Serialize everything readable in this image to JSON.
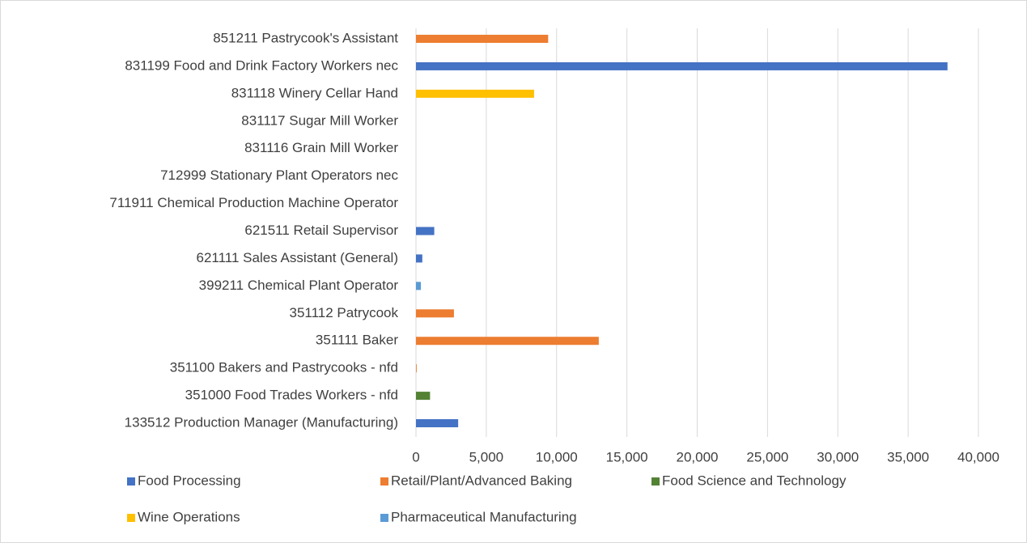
{
  "chart_data": {
    "type": "bar",
    "orientation": "horizontal",
    "stacked": true,
    "categories": [
      "133512  Production Manager (Manufacturing)",
      "351000  Food Trades Workers - nfd",
      "351100 Bakers and Pastrycooks - nfd",
      "351111 Baker",
      "351112 Patrycook",
      "399211 Chemical Plant Operator",
      "621111 Sales Assistant (General)",
      "621511 Retail Supervisor",
      "711911 Chemical Production Machine Operator",
      "712999 Stationary Plant Operators nec",
      "831116 Grain Mill Worker",
      "831117 Sugar Mill Worker",
      "831118 Winery Cellar Hand",
      "831199 Food and Drink Factory Workers nec",
      "851211 Pastrycook's Assistant"
    ],
    "series": [
      {
        "name": "Food Processing",
        "color": "#4472c4",
        "values": [
          3000,
          null,
          null,
          null,
          null,
          null,
          450,
          1300,
          null,
          null,
          null,
          null,
          null,
          37800,
          null
        ]
      },
      {
        "name": "Retail/Plant/Advanced Baking",
        "color": "#ed7d31",
        "values": [
          null,
          null,
          50,
          13000,
          2700,
          null,
          null,
          null,
          null,
          null,
          null,
          null,
          null,
          null,
          9400
        ]
      },
      {
        "name": "Food Science and Technology",
        "color": "#548235",
        "values": [
          null,
          1000,
          null,
          null,
          null,
          null,
          null,
          null,
          null,
          null,
          null,
          null,
          null,
          null,
          null
        ]
      },
      {
        "name": "Wine Operations",
        "color": "#ffc000",
        "values": [
          null,
          null,
          null,
          null,
          null,
          null,
          null,
          null,
          null,
          null,
          null,
          null,
          8400,
          null,
          null
        ]
      },
      {
        "name": "Pharmaceutical Manufacturing",
        "color": "#5b9bd5",
        "values": [
          null,
          null,
          null,
          null,
          null,
          350,
          null,
          null,
          null,
          null,
          null,
          null,
          null,
          null,
          null
        ]
      }
    ],
    "xlim": [
      0,
      40000
    ],
    "xticks": [
      0,
      {
        "value": 5000,
        "label": "5,000"
      },
      {
        "value": 10000,
        "label": "10,000"
      },
      {
        "value": 15000,
        "label": "15,000"
      },
      {
        "value": 20000,
        "label": "20,000"
      },
      {
        "value": 25000,
        "label": "25,000"
      },
      {
        "value": 30000,
        "label": "30,000"
      },
      {
        "value": 35000,
        "label": "35,000"
      },
      {
        "value": 40000,
        "label": "40,000"
      }
    ],
    "grid": true,
    "legend": "bottom"
  }
}
